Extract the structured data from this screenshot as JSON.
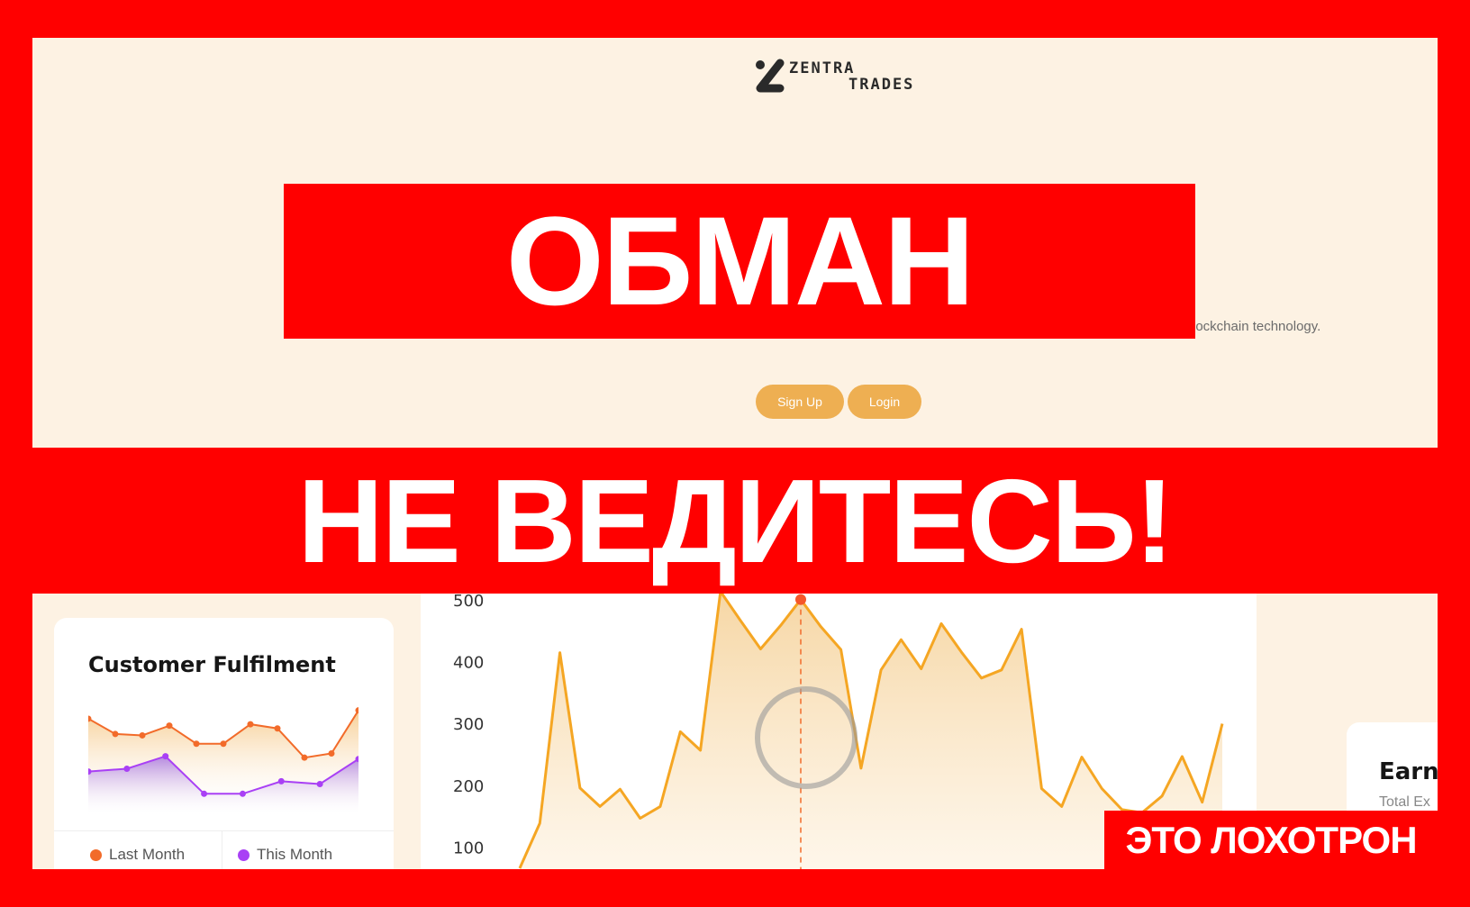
{
  "hero": {
    "logo": {
      "line1": "ZENTRA",
      "line2": "TRADES"
    },
    "tagline_visible": "lockchain technology.",
    "signup_label": "Sign Up",
    "login_label": "Login",
    "bg_color": "#fdf2e3",
    "button_color": "#eeaf52"
  },
  "overlay": {
    "warning_main": "ОБМАН",
    "warning_band": "НЕ ВЕДИТЕСЬ!",
    "warning_corner": "ЭТО ЛОХОТРОН",
    "color": "#ff0000"
  },
  "customer_card": {
    "title": "Customer Fulfilment",
    "legend": [
      {
        "label": "Last Month",
        "color": "#f26b2a"
      },
      {
        "label": "This Month",
        "color": "#a940f5"
      }
    ]
  },
  "earnings_card": {
    "title": "Earni",
    "subtitle": "Total Ex"
  },
  "chart_data": [
    {
      "type": "area",
      "title": "Customer Fulfilment",
      "series": [
        {
          "name": "Last Month",
          "color": "#f26b2a",
          "values": [
            90,
            79,
            78,
            85,
            72,
            72,
            86,
            83,
            62,
            65,
            96
          ]
        },
        {
          "name": "This Month",
          "color": "#a940f5",
          "values": [
            52,
            54,
            63,
            36,
            36,
            45,
            43,
            61
          ]
        }
      ],
      "grid": false
    },
    {
      "type": "area",
      "color": "#f5a623",
      "yticks": [
        "500",
        "400",
        "300",
        "200",
        "100"
      ],
      "ylim": [
        50,
        510
      ],
      "values": [
        67,
        140,
        416,
        197,
        167,
        195,
        148,
        167,
        288,
        258,
        515,
        468,
        422,
        460,
        502,
        458,
        421,
        229,
        388,
        437,
        390,
        463,
        417,
        375,
        388,
        454,
        196,
        167,
        247,
        196,
        162,
        157,
        184,
        248,
        174,
        301
      ],
      "highlight_index": 14,
      "grid": false
    }
  ]
}
